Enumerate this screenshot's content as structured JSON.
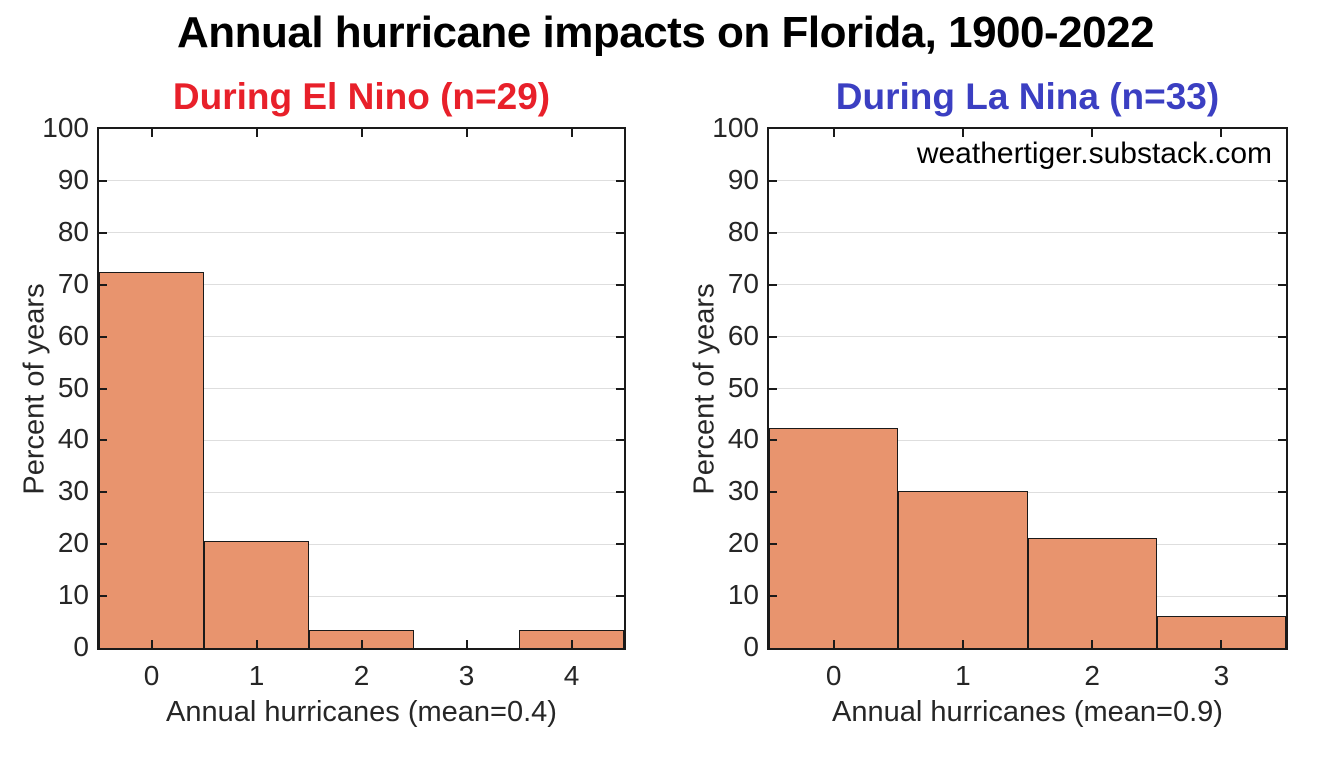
{
  "main_title": {
    "text": "Annual hurricane impacts on Florida, 1900-2022",
    "color": "#000000"
  },
  "watermark": {
    "text": "weathertiger.substack.com",
    "color": "#000000"
  },
  "styles": {
    "background": "#ffffff",
    "bar_fill": "#e8946e",
    "bar_edge": "#1a1a1a",
    "axis_color": "#1a1a1a",
    "grid_color": "#dedede",
    "tick_label_color": "#262626",
    "el_nino_title_color": "#e8202a",
    "la_nina_title_color": "#3b3fc2"
  },
  "chart_data": [
    {
      "type": "bar",
      "title": "During El Nino (n=29)",
      "title_color": "#e8202a",
      "n": 29,
      "mean": 0.4,
      "categories": [
        0,
        1,
        2,
        3,
        4
      ],
      "values": [
        72.4,
        20.7,
        3.4,
        0,
        3.4
      ],
      "bar_width": 1,
      "xlabel": "Annual hurricanes (mean=0.4)",
      "ylabel": "Percent of years",
      "xlim": [
        -0.5,
        4.5
      ],
      "ylim": [
        0,
        100
      ],
      "xticks": [
        0,
        1,
        2,
        3,
        4
      ],
      "yticks": [
        0,
        10,
        20,
        30,
        40,
        50,
        60,
        70,
        80,
        90,
        100
      ],
      "grid": "horizontal",
      "legend": "none"
    },
    {
      "type": "bar",
      "title": "During La Nina (n=33)",
      "title_color": "#3b3fc2",
      "n": 33,
      "mean": 0.9,
      "categories": [
        0,
        1,
        2,
        3
      ],
      "values": [
        42.4,
        30.3,
        21.2,
        6.1
      ],
      "bar_width": 1,
      "xlabel": "Annual hurricanes (mean=0.9)",
      "ylabel": "Percent of years",
      "xlim": [
        -0.5,
        3.5
      ],
      "ylim": [
        0,
        100
      ],
      "xticks": [
        0,
        1,
        2,
        3
      ],
      "yticks": [
        0,
        10,
        20,
        30,
        40,
        50,
        60,
        70,
        80,
        90,
        100
      ],
      "grid": "horizontal",
      "legend": "none"
    }
  ]
}
